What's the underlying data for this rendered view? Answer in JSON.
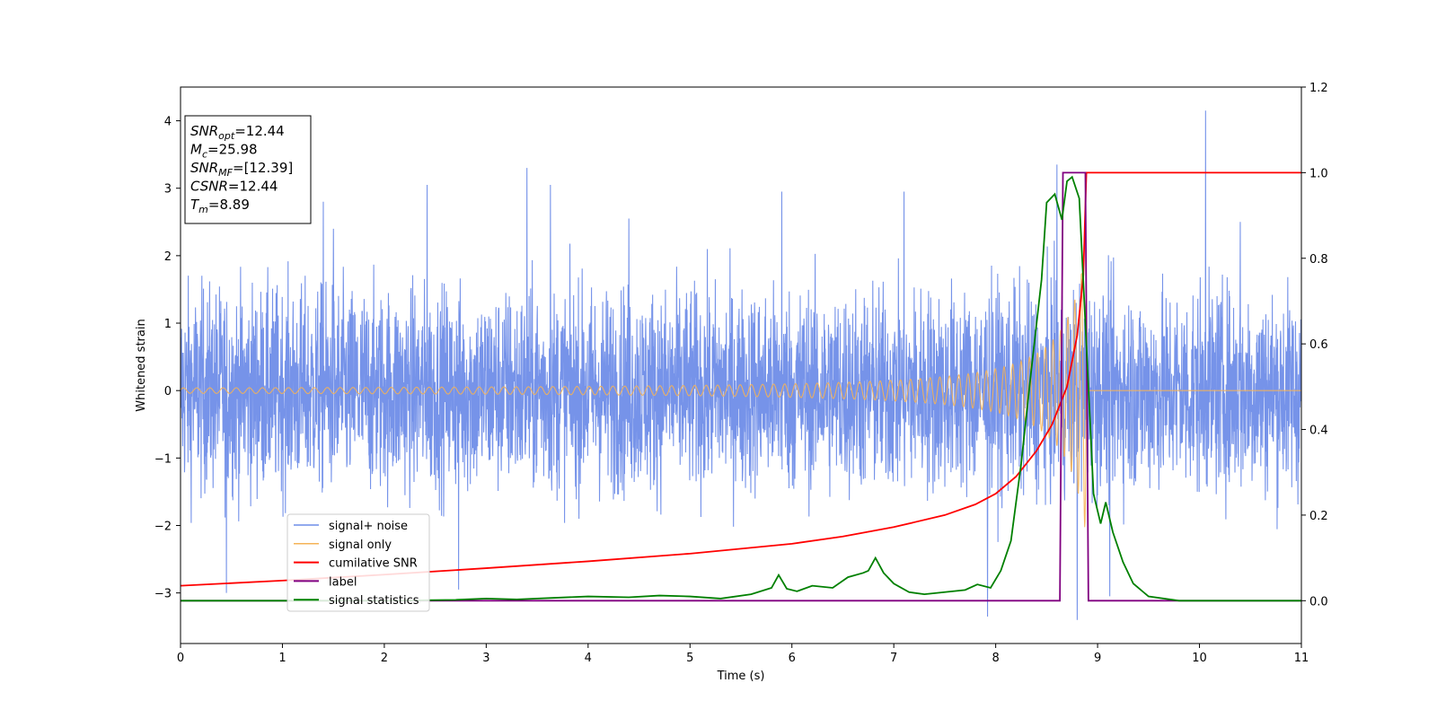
{
  "chart_data": {
    "type": "line",
    "xlabel": "Time (s)",
    "ylabel": "Whitened strain",
    "xlim": [
      0,
      11
    ],
    "ylim_left": [
      -3.75,
      4.5
    ],
    "ylim_right": [
      -0.1,
      1.2
    ],
    "xticks": [
      "0",
      "1",
      "2",
      "3",
      "4",
      "5",
      "6",
      "7",
      "8",
      "9",
      "10",
      "11"
    ],
    "yticks_left": [
      "−3",
      "−2",
      "−1",
      "0",
      "1",
      "2",
      "3",
      "4"
    ],
    "yticks_right": [
      "0.0",
      "0.2",
      "0.4",
      "0.6",
      "0.8",
      "1.0",
      "1.2"
    ],
    "legend_position": "lower-left",
    "info_box": {
      "position": "top-left",
      "lines": [
        {
          "sym": "SNR",
          "sub": "opt",
          "value": "=12.44"
        },
        {
          "sym": "M",
          "sub": "c",
          "value": "=25.98"
        },
        {
          "sym": "SNR",
          "sub": "MF",
          "value": "=[12.39]"
        },
        {
          "sym": "CSNR",
          "sub": "",
          "value": "=12.44"
        },
        {
          "sym": "T",
          "sub": "m",
          "value": "=8.89"
        }
      ]
    },
    "series": [
      {
        "name": "signal+ noise",
        "axis": "left",
        "color": "#6f8de8",
        "description_envelope": {
          "typical_amplitude": 1.8,
          "peak_max": 4.15,
          "peak_min": -3.4
        },
        "spikes": [
          [
            0.45,
            -3.0
          ],
          [
            1.4,
            2.8
          ],
          [
            1.5,
            2.4
          ],
          [
            2.42,
            3.05
          ],
          [
            2.73,
            -2.95
          ],
          [
            3.4,
            3.3
          ],
          [
            3.63,
            3.05
          ],
          [
            4.4,
            2.55
          ],
          [
            5.9,
            2.95
          ],
          [
            7.1,
            2.95
          ],
          [
            7.92,
            -3.35
          ],
          [
            8.6,
            3.35
          ],
          [
            8.8,
            -3.4
          ],
          [
            9.12,
            -3.05
          ],
          [
            10.06,
            4.15
          ],
          [
            10.4,
            2.5
          ]
        ]
      },
      {
        "name": "signal only",
        "axis": "left",
        "color": "#f5b357",
        "description_chirp": {
          "start_amplitude": 0.02,
          "end_amplitude": 2.2,
          "merger_time": 8.89
        }
      },
      {
        "name": "cumilative SNR",
        "axis": "right",
        "color": "#ff0000",
        "x": [
          0,
          1,
          2,
          3,
          4,
          5,
          6,
          6.5,
          7,
          7.5,
          7.8,
          8.0,
          8.2,
          8.4,
          8.55,
          8.7,
          8.8,
          8.86,
          8.89,
          9.0,
          10,
          11
        ],
        "values": [
          0.035,
          0.047,
          0.061,
          0.076,
          0.092,
          0.11,
          0.133,
          0.15,
          0.172,
          0.2,
          0.225,
          0.25,
          0.29,
          0.35,
          0.41,
          0.5,
          0.62,
          0.76,
          1.0,
          1.0,
          1.0,
          1.0
        ]
      },
      {
        "name": "label",
        "axis": "right",
        "color": "#800080",
        "x": [
          0,
          8.63,
          8.66,
          8.88,
          8.91,
          11
        ],
        "values": [
          0,
          0,
          1.0,
          1.0,
          0,
          0
        ]
      },
      {
        "name": "signal statistics",
        "axis": "right",
        "color": "#008000",
        "x": [
          0,
          1,
          2,
          2.7,
          3.0,
          3.3,
          3.6,
          4.0,
          4.4,
          4.7,
          5.0,
          5.3,
          5.6,
          5.8,
          5.87,
          5.95,
          6.05,
          6.2,
          6.4,
          6.55,
          6.7,
          6.75,
          6.82,
          6.9,
          7.0,
          7.15,
          7.3,
          7.5,
          7.7,
          7.82,
          7.95,
          8.05,
          8.15,
          8.25,
          8.35,
          8.45,
          8.5,
          8.58,
          8.65,
          8.7,
          8.75,
          8.82,
          8.9,
          8.96,
          9.03,
          9.08,
          9.15,
          9.25,
          9.35,
          9.5,
          9.8,
          11
        ],
        "values": [
          0.0,
          0.0,
          0.0,
          0.002,
          0.005,
          0.003,
          0.006,
          0.01,
          0.008,
          0.012,
          0.01,
          0.005,
          0.015,
          0.03,
          0.06,
          0.028,
          0.022,
          0.035,
          0.03,
          0.055,
          0.065,
          0.07,
          0.1,
          0.065,
          0.04,
          0.02,
          0.015,
          0.02,
          0.025,
          0.038,
          0.03,
          0.07,
          0.14,
          0.32,
          0.54,
          0.75,
          0.93,
          0.95,
          0.89,
          0.98,
          0.99,
          0.94,
          0.55,
          0.25,
          0.18,
          0.23,
          0.16,
          0.09,
          0.04,
          0.01,
          0.0,
          0.0
        ]
      }
    ]
  }
}
